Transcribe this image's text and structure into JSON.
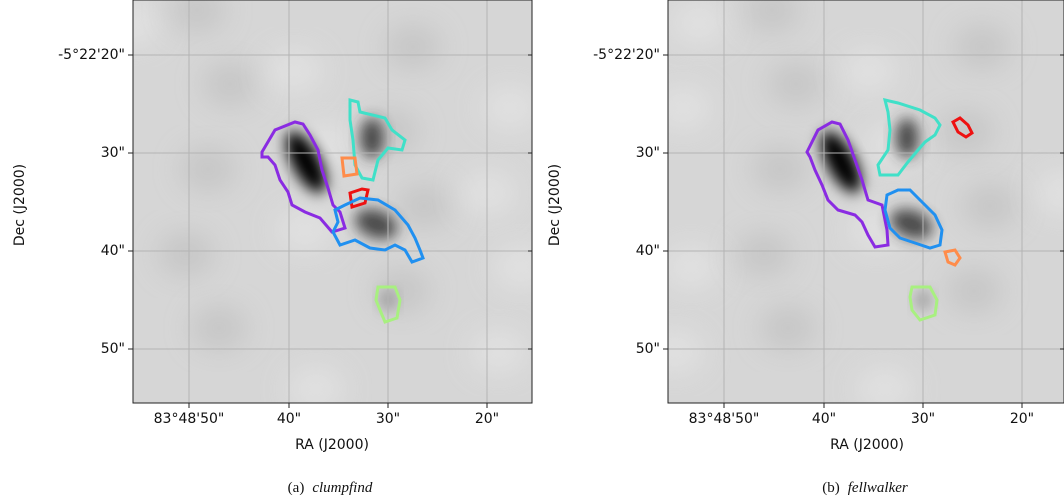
{
  "panels": [
    {
      "x_label": "RA (J2000)",
      "y_label": "Dec (J2000)",
      "x_ticks": [
        "83°48'50\"",
        "40\"",
        "30\"",
        "20\""
      ],
      "y_ticks": [
        "-5°22'20\"",
        "30\"",
        "40\"",
        "50\""
      ],
      "caption": {
        "label": "(a)",
        "name": "clumpfind"
      }
    },
    {
      "x_label": "RA (J2000)",
      "y_label": "Dec (J2000)",
      "x_ticks": [
        "83°48'50\"",
        "40\"",
        "30\"",
        "20\""
      ],
      "y_ticks": [
        "-5°22'20\"",
        "30\"",
        "40\"",
        "50\""
      ],
      "caption": {
        "label": "(b)",
        "name": "fellwalker"
      }
    }
  ]
}
